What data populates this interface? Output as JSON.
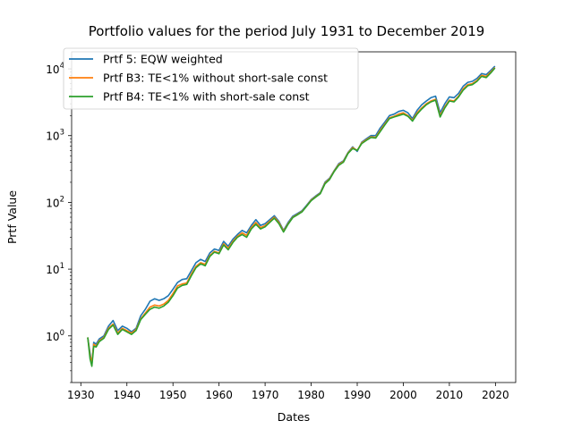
{
  "chart_data": {
    "type": "line",
    "title": "Portfolio values for the period July 1931 to December 2019",
    "xlabel": "Dates",
    "ylabel": "Prtf Value",
    "xlim": [
      1928.0,
      2024.4
    ],
    "ylim": [
      0.2,
      18000
    ],
    "yscale": "log",
    "grid": false,
    "legend_position": "upper-left",
    "x_ticks": [
      1930,
      1940,
      1950,
      1960,
      1970,
      1980,
      1990,
      2000,
      2010,
      2020
    ],
    "x_tick_labels": [
      "1930",
      "1940",
      "1950",
      "1960",
      "1970",
      "1980",
      "1990",
      "2000",
      "2010",
      "2020"
    ],
    "y_ticks": [
      1,
      10,
      100,
      1000,
      10000
    ],
    "y_tick_labels": [
      {
        "base": "10",
        "exp": "0"
      },
      {
        "base": "10",
        "exp": "1"
      },
      {
        "base": "10",
        "exp": "2"
      },
      {
        "base": "10",
        "exp": "3"
      },
      {
        "base": "10",
        "exp": "4"
      }
    ],
    "series": [
      {
        "name": "Prtf 5: EQW weighted",
        "color": "#1f77b4",
        "x": [
          1931.5,
          1932.0,
          1932.4,
          1932.8,
          1933.3,
          1934.0,
          1935.0,
          1936.0,
          1937.0,
          1938.0,
          1939.0,
          1940.0,
          1941.0,
          1942.0,
          1943.0,
          1944.0,
          1945.0,
          1946.0,
          1947.0,
          1948.0,
          1949.0,
          1950.0,
          1951.0,
          1952.0,
          1953.0,
          1954.0,
          1955.0,
          1956.0,
          1957.0,
          1958.0,
          1959.0,
          1960.0,
          1961.0,
          1962.0,
          1963.0,
          1964.0,
          1965.0,
          1966.0,
          1967.0,
          1968.0,
          1969.0,
          1970.0,
          1971.0,
          1972.0,
          1973.0,
          1974.0,
          1975.0,
          1976.0,
          1977.0,
          1978.0,
          1979.0,
          1980.0,
          1981.0,
          1982.0,
          1983.0,
          1984.0,
          1985.0,
          1986.0,
          1987.0,
          1988.0,
          1989.0,
          1990.0,
          1991.0,
          1992.0,
          1993.0,
          1994.0,
          1995.0,
          1996.0,
          1997.0,
          1998.0,
          1999.0,
          2000.0,
          2001.0,
          2002.0,
          2003.0,
          2004.0,
          2005.0,
          2006.0,
          2007.0,
          2008.0,
          2009.0,
          2010.0,
          2011.0,
          2012.0,
          2013.0,
          2014.0,
          2015.0,
          2016.0,
          2017.0,
          2018.0,
          2019.0,
          2019.9
        ],
        "values": [
          0.95,
          0.55,
          0.37,
          0.8,
          0.75,
          0.9,
          1.0,
          1.4,
          1.7,
          1.2,
          1.4,
          1.3,
          1.15,
          1.3,
          2.0,
          2.5,
          3.3,
          3.6,
          3.4,
          3.6,
          4.0,
          5.0,
          6.3,
          7.0,
          7.2,
          9.5,
          12.5,
          14.0,
          13.0,
          17.5,
          20.0,
          19.0,
          26.0,
          22.0,
          28.0,
          33.0,
          38.0,
          35.0,
          45.0,
          55.0,
          45.0,
          48.0,
          55.0,
          63.0,
          52.0,
          38.0,
          50.0,
          62.0,
          68.0,
          75.0,
          90.0,
          110.0,
          125.0,
          140.0,
          200.0,
          230.0,
          300.0,
          380.0,
          420.0,
          560.0,
          680.0,
          580.0,
          800.0,
          900.0,
          1000.0,
          1000.0,
          1300.0,
          1600.0,
          2000.0,
          2100.0,
          2300.0,
          2400.0,
          2200.0,
          1800.0,
          2400.0,
          2900.0,
          3300.0,
          3700.0,
          3900.0,
          2200.0,
          3000.0,
          3800.0,
          3700.0,
          4300.0,
          5500.0,
          6300.0,
          6500.0,
          7200.0,
          8500.0,
          8200.0,
          9500.0,
          11000.0
        ]
      },
      {
        "name": "Prtf B3: TE<1% without short-sale const",
        "color": "#ff7f0e",
        "x": [
          1931.5,
          1932.0,
          1932.4,
          1932.8,
          1933.3,
          1934.0,
          1935.0,
          1936.0,
          1937.0,
          1938.0,
          1939.0,
          1940.0,
          1941.0,
          1942.0,
          1943.0,
          1944.0,
          1945.0,
          1946.0,
          1947.0,
          1948.0,
          1949.0,
          1950.0,
          1951.0,
          1952.0,
          1953.0,
          1954.0,
          1955.0,
          1956.0,
          1957.0,
          1958.0,
          1959.0,
          1960.0,
          1961.0,
          1962.0,
          1963.0,
          1964.0,
          1965.0,
          1966.0,
          1967.0,
          1968.0,
          1969.0,
          1970.0,
          1971.0,
          1972.0,
          1973.0,
          1974.0,
          1975.0,
          1976.0,
          1977.0,
          1978.0,
          1979.0,
          1980.0,
          1981.0,
          1982.0,
          1983.0,
          1984.0,
          1985.0,
          1986.0,
          1987.0,
          1988.0,
          1989.0,
          1990.0,
          1991.0,
          1992.0,
          1993.0,
          1994.0,
          1995.0,
          1996.0,
          1997.0,
          1998.0,
          1999.0,
          2000.0,
          2001.0,
          2002.0,
          2003.0,
          2004.0,
          2005.0,
          2006.0,
          2007.0,
          2008.0,
          2009.0,
          2010.0,
          2011.0,
          2012.0,
          2013.0,
          2014.0,
          2015.0,
          2016.0,
          2017.0,
          2018.0,
          2019.0,
          2019.9
        ],
        "values": [
          0.95,
          0.5,
          0.4,
          0.75,
          0.7,
          0.85,
          0.95,
          1.3,
          1.5,
          1.1,
          1.3,
          1.2,
          1.1,
          1.25,
          1.8,
          2.2,
          2.7,
          2.9,
          2.8,
          3.0,
          3.4,
          4.3,
          5.6,
          6.0,
          6.2,
          8.5,
          11.0,
          12.5,
          11.8,
          16.0,
          18.5,
          17.5,
          24.0,
          20.5,
          26.0,
          31.0,
          35.0,
          32.0,
          42.0,
          50.0,
          42.0,
          45.0,
          52.0,
          60.0,
          50.0,
          37.0,
          48.0,
          60.0,
          66.0,
          73.0,
          88.0,
          108.0,
          122.0,
          137.0,
          195.0,
          225.0,
          295.0,
          370.0,
          410.0,
          550.0,
          660.0,
          600.0,
          780.0,
          870.0,
          960.0,
          940.0,
          1200.0,
          1500.0,
          1850.0,
          1950.0,
          2100.0,
          2200.0,
          2000.0,
          1700.0,
          2200.0,
          2600.0,
          3000.0,
          3300.0,
          3500.0,
          2000.0,
          2700.0,
          3400.0,
          3300.0,
          3900.0,
          5000.0,
          5800.0,
          6000.0,
          6700.0,
          8000.0,
          7700.0,
          9000.0,
          10500.0
        ]
      },
      {
        "name": "Prtf B4: TE<1% with short-sale const",
        "color": "#2ca02c",
        "x": [
          1931.5,
          1932.0,
          1932.4,
          1932.8,
          1933.3,
          1934.0,
          1935.0,
          1936.0,
          1937.0,
          1938.0,
          1939.0,
          1940.0,
          1941.0,
          1942.0,
          1943.0,
          1944.0,
          1945.0,
          1946.0,
          1947.0,
          1948.0,
          1949.0,
          1950.0,
          1951.0,
          1952.0,
          1953.0,
          1954.0,
          1955.0,
          1956.0,
          1957.0,
          1958.0,
          1959.0,
          1960.0,
          1961.0,
          1962.0,
          1963.0,
          1964.0,
          1965.0,
          1966.0,
          1967.0,
          1968.0,
          1969.0,
          1970.0,
          1971.0,
          1972.0,
          1973.0,
          1974.0,
          1975.0,
          1976.0,
          1977.0,
          1978.0,
          1979.0,
          1980.0,
          1981.0,
          1982.0,
          1983.0,
          1984.0,
          1985.0,
          1986.0,
          1987.0,
          1988.0,
          1989.0,
          1990.0,
          1991.0,
          1992.0,
          1993.0,
          1994.0,
          1995.0,
          1996.0,
          1997.0,
          1998.0,
          1999.0,
          2000.0,
          2001.0,
          2002.0,
          2003.0,
          2004.0,
          2005.0,
          2006.0,
          2007.0,
          2008.0,
          2009.0,
          2010.0,
          2011.0,
          2012.0,
          2013.0,
          2014.0,
          2015.0,
          2016.0,
          2017.0,
          2018.0,
          2019.0,
          2019.9
        ],
        "values": [
          0.95,
          0.45,
          0.35,
          0.7,
          0.68,
          0.82,
          0.92,
          1.25,
          1.45,
          1.05,
          1.25,
          1.15,
          1.05,
          1.2,
          1.75,
          2.1,
          2.5,
          2.7,
          2.6,
          2.8,
          3.2,
          4.0,
          5.2,
          5.7,
          5.9,
          8.0,
          10.5,
          12.0,
          11.2,
          15.5,
          18.0,
          17.0,
          23.0,
          19.5,
          25.0,
          30.0,
          33.0,
          30.0,
          40.0,
          47.0,
          40.0,
          43.0,
          50.0,
          58.0,
          48.0,
          36.0,
          47.0,
          59.0,
          65.0,
          72.0,
          87.0,
          106.0,
          120.0,
          135.0,
          190.0,
          220.0,
          290.0,
          360.0,
          400.0,
          540.0,
          640.0,
          600.0,
          760.0,
          850.0,
          940.0,
          920.0,
          1150.0,
          1450.0,
          1800.0,
          1900.0,
          2000.0,
          2100.0,
          1950.0,
          1650.0,
          2100.0,
          2500.0,
          2900.0,
          3200.0,
          3400.0,
          1900.0,
          2600.0,
          3300.0,
          3200.0,
          3800.0,
          4800.0,
          5600.0,
          5800.0,
          6500.0,
          7700.0,
          7400.0,
          8700.0,
          10300.0
        ]
      }
    ]
  }
}
